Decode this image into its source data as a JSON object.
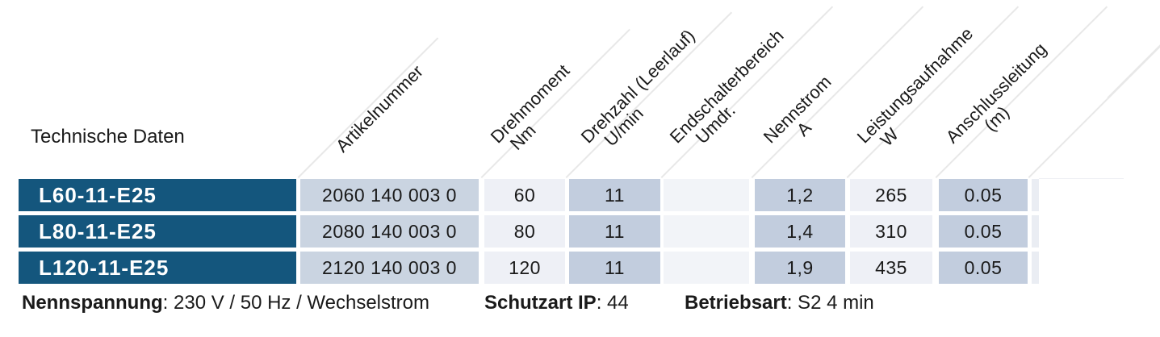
{
  "title": "Technische Daten",
  "table": {
    "columns": [
      {
        "key": "model",
        "label": "",
        "unit": ""
      },
      {
        "key": "artikelnummer",
        "label": "Artikelnummer",
        "unit": ""
      },
      {
        "key": "drehmoment",
        "label": "Drehmoment",
        "unit": "Nm"
      },
      {
        "key": "drehzahl",
        "label": "Drehzahl (Leerlauf)",
        "unit": "U/min"
      },
      {
        "key": "endschalterbereich",
        "label": "Endschalterbereich",
        "unit": "Umdr."
      },
      {
        "key": "nennstrom",
        "label": "Nennstrom",
        "unit": "A"
      },
      {
        "key": "leistungsaufnahme",
        "label": "Leistungsaufnahme",
        "unit": "W"
      },
      {
        "key": "anschlussleitung",
        "label": "Anschlussleitung",
        "unit": "(m)"
      }
    ],
    "rows": [
      {
        "model": "L60-11-E25",
        "artikelnummer": "2060 140 003 0",
        "drehmoment": "60",
        "drehzahl": "11",
        "endschalterbereich": "",
        "nennstrom": "1,2",
        "leistungsaufnahme": "265",
        "anschlussleitung": "0.05"
      },
      {
        "model": "L80-11-E25",
        "artikelnummer": "2080 140 003 0",
        "drehmoment": "80",
        "drehzahl": "11",
        "endschalterbereich": "",
        "nennstrom": "1,4",
        "leistungsaufnahme": "310",
        "anschlussleitung": "0.05"
      },
      {
        "model": "L120-11-E25",
        "artikelnummer": "2120 140 003 0",
        "drehmoment": "120",
        "drehzahl": "11",
        "endschalterbereich": "",
        "nennstrom": "1,9",
        "leistungsaufnahme": "435",
        "anschlussleitung": "0.05"
      }
    ]
  },
  "footer": {
    "items": [
      {
        "label": "Nennspannung",
        "value": ": 230 V / 50 Hz / Wechselstrom"
      },
      {
        "label": "Schutzart IP",
        "value": ": 44"
      },
      {
        "label": "Betriebsart",
        "value": ": S2 4 min"
      }
    ]
  },
  "colors": {
    "model_row_bg": "#14567d",
    "model_row_text": "#ffffff",
    "cell_mid": "#cad4e1",
    "cell_dark": "#c2cdde",
    "cell_light": "#eef0f6",
    "cell_empty": "#f2f4f8",
    "cell_sliver": "#eaedf3",
    "divider_line": "#e8e8e8",
    "text": "#1a1a1a"
  }
}
